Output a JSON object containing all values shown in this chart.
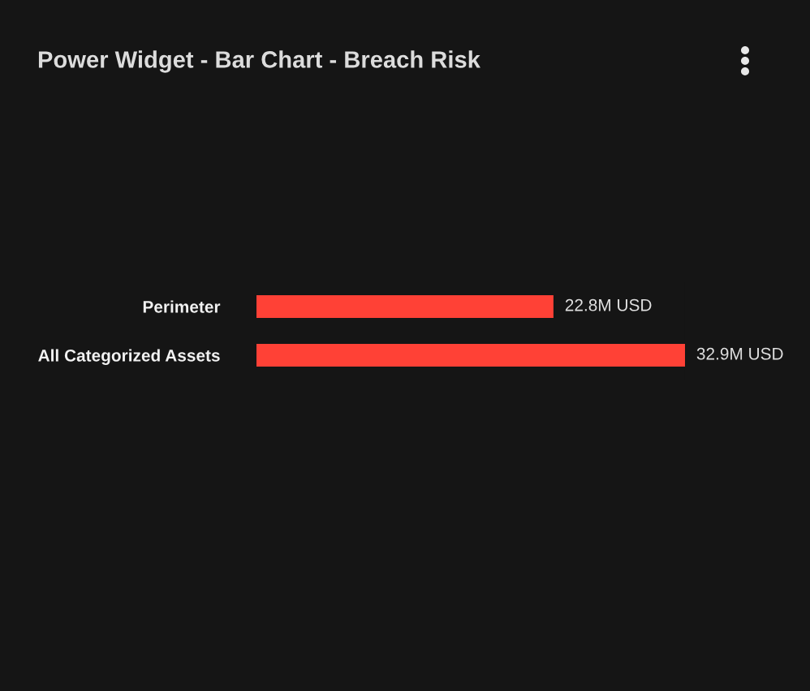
{
  "chart_data": {
    "type": "bar",
    "title": "Power Widget - Bar Chart - Breach Risk",
    "orientation": "horizontal",
    "tick_labels": "y",
    "categories": [
      "Perimeter",
      "All Categorized Assets"
    ],
    "values": [
      22.8,
      32.9
    ],
    "color": "#ff4136",
    "value_labels": [
      "22.8M USD",
      "32.9M USD"
    ]
  }
}
